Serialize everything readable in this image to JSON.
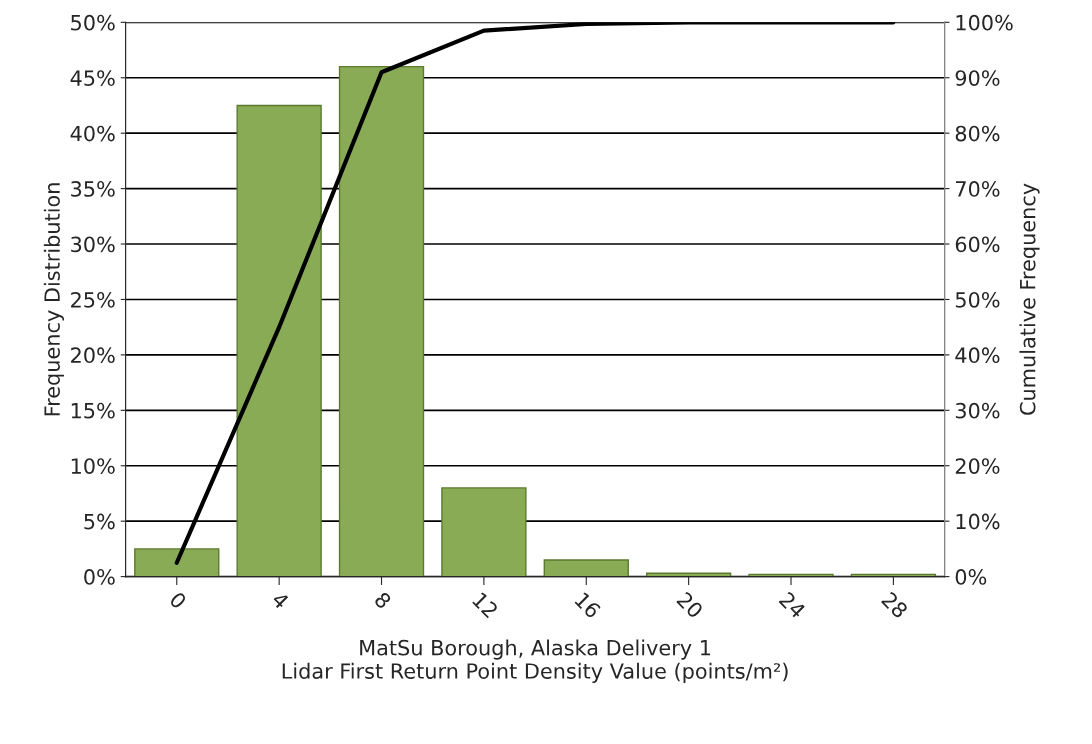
{
  "chart_data": {
    "type": "bar",
    "categories": [
      "0",
      "4",
      "8",
      "12",
      "16",
      "20",
      "24",
      "28"
    ],
    "xlabel": "MatSu Borough, Alaska Delivery 1\nLidar First Return Point Density Value (points/m²)",
    "ylabel": "Frequency Distribution",
    "y2label": "Cumulative Frequency",
    "series": [
      {
        "color": "#8aab55",
        "values": [
          2.5,
          42.5,
          46,
          8,
          1.5,
          0.3,
          0.2,
          0.2
        ]
      },
      {
        "type": "line",
        "axis": "y2",
        "color": "#000000",
        "values": [
          2.5,
          45,
          91,
          98.5,
          99.7,
          100,
          100,
          100
        ]
      }
    ],
    "ylim": [
      0,
      50
    ],
    "yticks": [
      {
        "value": 0,
        "label": "0%"
      },
      {
        "value": 5,
        "label": "5%"
      },
      {
        "value": 10,
        "label": "10%"
      },
      {
        "value": 15,
        "label": "15%"
      },
      {
        "value": 20,
        "label": "20%"
      },
      {
        "value": 25,
        "label": "25%"
      },
      {
        "value": 30,
        "label": "30%"
      },
      {
        "value": 35,
        "label": "35%"
      },
      {
        "value": 40,
        "label": "40%"
      },
      {
        "value": 45,
        "label": "45%"
      },
      {
        "value": 50,
        "label": "50%"
      }
    ],
    "y2lim": [
      0,
      100
    ],
    "y2ticks": [
      {
        "value": 0,
        "label": "0%"
      },
      {
        "value": 10,
        "label": "10%"
      },
      {
        "value": 20,
        "label": "20%"
      },
      {
        "value": 30,
        "label": "30%"
      },
      {
        "value": 40,
        "label": "40%"
      },
      {
        "value": 50,
        "label": "50%"
      },
      {
        "value": 60,
        "label": "60%"
      },
      {
        "value": 70,
        "label": "70%"
      },
      {
        "value": 80,
        "label": "80%"
      },
      {
        "value": 90,
        "label": "90%"
      },
      {
        "value": 100,
        "label": "100%"
      }
    ],
    "grid": "y",
    "marker": "none",
    "line_style": "solid"
  }
}
